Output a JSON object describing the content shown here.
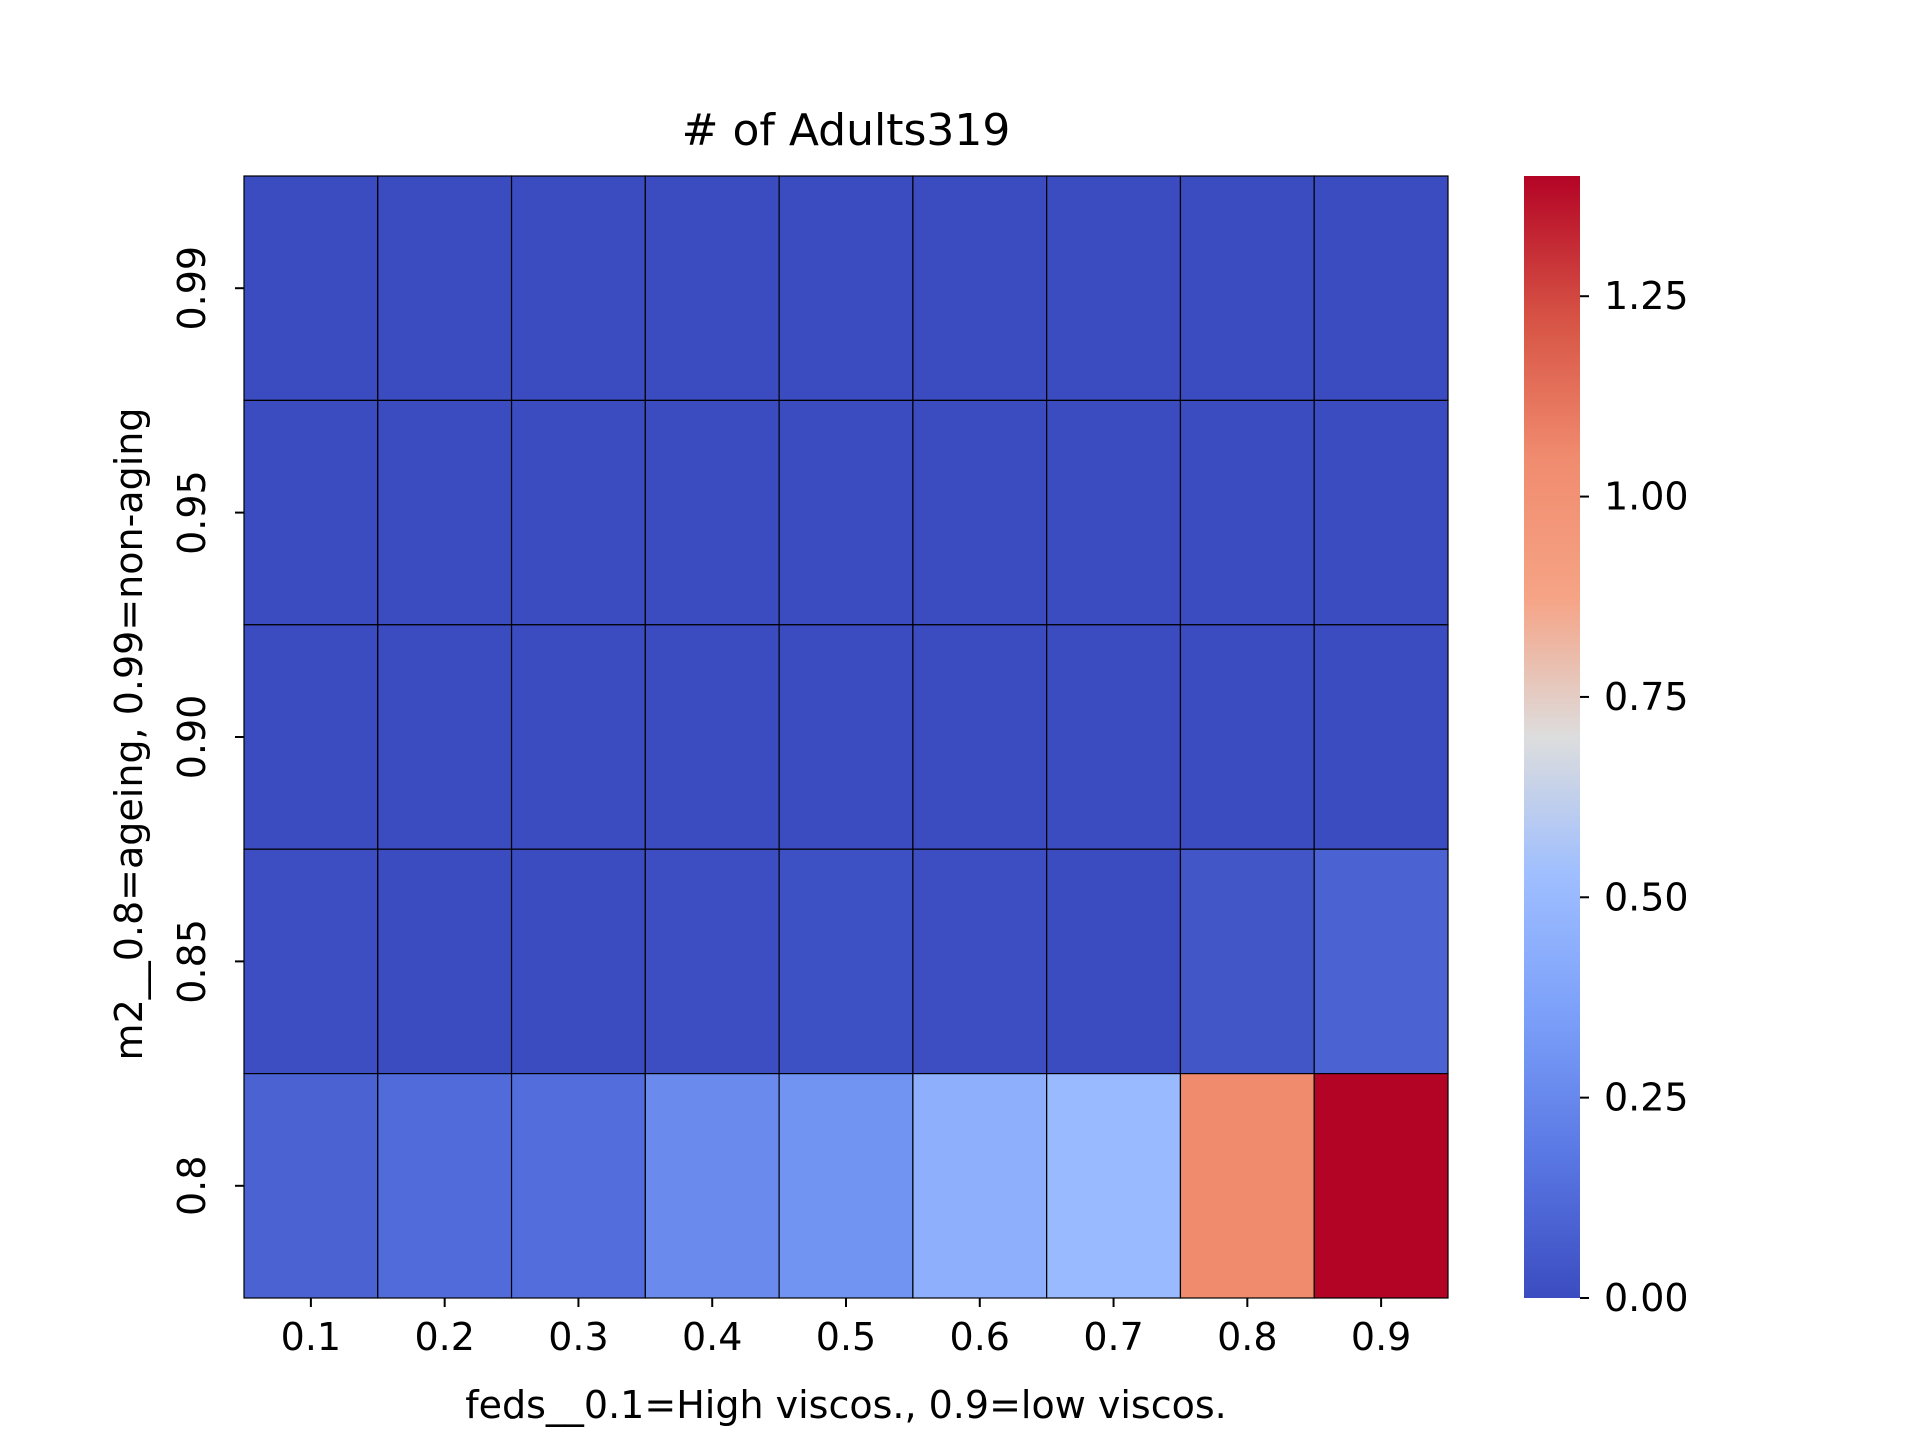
{
  "chart_data": {
    "type": "heatmap",
    "title": "# of Adults319",
    "xlabel": "feds__0.1=High viscos., 0.9=low viscos.",
    "ylabel": "m2__0.8=ageing, 0.99=non-aging",
    "x_categories": [
      "0.1",
      "0.2",
      "0.3",
      "0.4",
      "0.5",
      "0.6",
      "0.7",
      "0.8",
      "0.9"
    ],
    "y_categories": [
      "0.99",
      "0.95",
      "0.90",
      "0.85",
      "0.8"
    ],
    "values": [
      [
        0.0,
        0.0,
        0.0,
        0.0,
        0.0,
        0.0,
        0.0,
        0.0,
        0.0
      ],
      [
        0.0,
        0.0,
        0.0,
        0.0,
        0.0,
        0.0,
        0.0,
        0.0,
        0.0
      ],
      [
        0.0,
        0.0,
        0.0,
        0.0,
        0.0,
        0.0,
        0.0,
        0.0,
        0.0
      ],
      [
        0.01,
        0.0,
        0.0,
        0.01,
        0.02,
        0.01,
        0.0,
        0.04,
        0.09
      ],
      [
        0.09,
        0.13,
        0.14,
        0.26,
        0.3,
        0.44,
        0.5,
        1.05,
        1.4
      ]
    ],
    "colorbar": {
      "vmin": 0.0,
      "vmax": 1.4,
      "ticks": [
        "0.00",
        "0.25",
        "0.50",
        "0.75",
        "1.00",
        "1.25"
      ],
      "colormap": "coolwarm"
    },
    "grid": true
  }
}
